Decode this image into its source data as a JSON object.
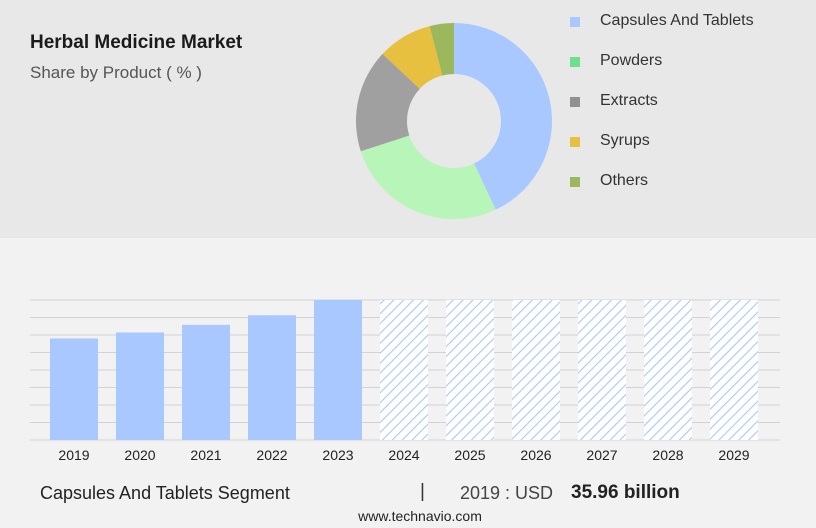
{
  "header": {
    "title": "Herbal Medicine Market",
    "subtitle": "Share by Product ( % )"
  },
  "footer": {
    "segment_label": "Capsules And Tablets Segment",
    "separator": "|",
    "year_label": "2019 : USD",
    "value_label": "35.96 billion",
    "source": "www.technavio.com"
  },
  "chart_data": [
    {
      "type": "pie",
      "style": "donut",
      "legend_position": "right",
      "categories": [
        "Capsules And Tablets",
        "Powders",
        "Extracts",
        "Syrups",
        "Others"
      ],
      "values": [
        43,
        27,
        17,
        9,
        4
      ],
      "colors": [
        "#a8c8ff",
        "#b8f5b8",
        "#a0a0a0",
        "#e8c040",
        "#9cb85c"
      ],
      "legend_colors": [
        "#a8c8ff",
        "#6ee08c",
        "#909090",
        "#e8c040",
        "#9cb85c"
      ]
    },
    {
      "type": "bar",
      "categories": [
        "2019",
        "2020",
        "2021",
        "2022",
        "2023",
        "2024",
        "2025",
        "2026",
        "2027",
        "2028",
        "2029"
      ],
      "values": [
        35.96,
        38.1,
        40.8,
        44.2,
        49.6,
        null,
        null,
        null,
        null,
        null,
        null
      ],
      "forecast_from": "2024",
      "forecast_style": "hatched",
      "ylim": [
        0,
        49.6
      ],
      "grid": true,
      "bar_color": "#a8c8ff"
    }
  ]
}
